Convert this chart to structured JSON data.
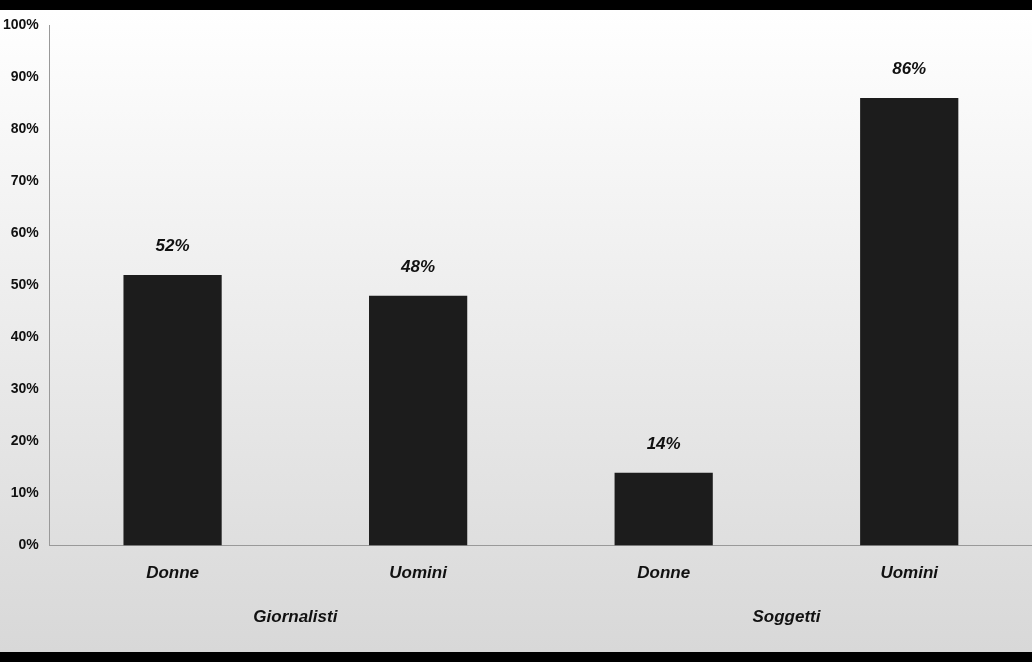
{
  "chart_data": {
    "type": "bar",
    "categories": [
      "Donne",
      "Uomini",
      "Donne",
      "Uomini"
    ],
    "values": [
      52,
      48,
      14,
      86
    ],
    "value_labels": [
      "52%",
      "48%",
      "14%",
      "86%"
    ],
    "color": "#1c1c1c",
    "ylim": [
      0,
      100
    ],
    "yticks": [
      {
        "value": 0,
        "label": "0%"
      },
      {
        "value": 10,
        "label": "10%"
      },
      {
        "value": 20,
        "label": "20%"
      },
      {
        "value": 30,
        "label": "30%"
      },
      {
        "value": 40,
        "label": "40%"
      },
      {
        "value": 50,
        "label": "50%"
      },
      {
        "value": 60,
        "label": "60%"
      },
      {
        "value": 70,
        "label": "70%"
      },
      {
        "value": 80,
        "label": "80%"
      },
      {
        "value": 90,
        "label": "90%"
      },
      {
        "value": 100,
        "label": "100%"
      }
    ],
    "annotations": [
      "Giornalisti",
      "Soggetti"
    ],
    "grid": false,
    "legend": false
  }
}
